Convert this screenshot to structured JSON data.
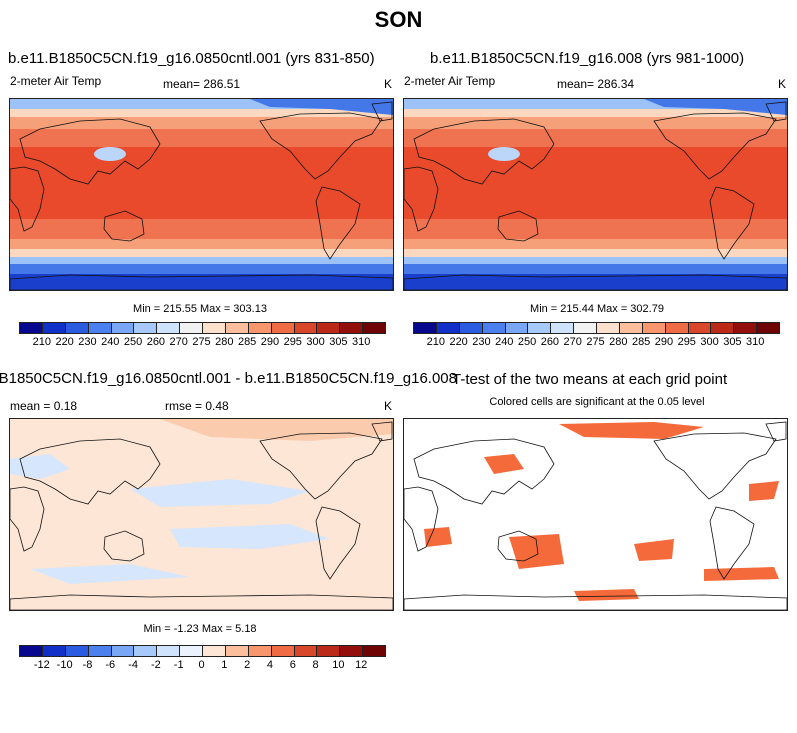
{
  "main_title": "SON",
  "panels": {
    "p1": {
      "title": "b.e11.B1850C5CN.f19_g16.0850cntl.001 (yrs 831-850)",
      "variable": "2-meter Air Temp",
      "mean_label": "mean= 286.51",
      "units": "K",
      "minmax": "Min = 215.55 Max = 303.13"
    },
    "p2": {
      "title": "b.e11.B1850C5CN.f19_g16.008 (yrs 981-1000)",
      "variable": "2-meter Air Temp",
      "mean_label": "mean= 286.34",
      "units": "K",
      "minmax": "Min = 215.44 Max = 302.79"
    },
    "p3": {
      "title": "B1850C5CN.f19_g16.0850cntl.001 - b.e11.B1850C5CN.f19_g16.008",
      "mean_label": "mean =   0.18",
      "rmse_label": "rmse =   0.48",
      "units": "K",
      "minmax": "Min = -1.23 Max =   5.18"
    },
    "p4": {
      "title": "T-test of the two means at each grid point",
      "subtitle": "Colored cells are significant at the 0.05 level",
      "sig_color": "#f56a3a"
    }
  },
  "chart_data": [
    {
      "type": "heatmap",
      "title": "b.e11.B1850C5CN.f19_g16.0850cntl.001 (yrs 831-850)",
      "variable": "2-meter Air Temp",
      "units": "K",
      "mean": 286.51,
      "min": 215.55,
      "max": 303.13,
      "colorbar_levels": [
        210,
        220,
        230,
        240,
        250,
        260,
        270,
        275,
        280,
        285,
        290,
        295,
        300,
        305,
        310
      ]
    },
    {
      "type": "heatmap",
      "title": "b.e11.B1850C5CN.f19_g16.008 (yrs 981-1000)",
      "variable": "2-meter Air Temp",
      "units": "K",
      "mean": 286.34,
      "min": 215.44,
      "max": 302.79,
      "colorbar_levels": [
        210,
        220,
        230,
        240,
        250,
        260,
        270,
        275,
        280,
        285,
        290,
        295,
        300,
        305,
        310
      ]
    },
    {
      "type": "heatmap",
      "title": "B1850C5CN.f19_g16.0850cntl.001 - b.e11.B1850C5CN.f19_g16.008",
      "units": "K",
      "mean": 0.18,
      "rmse": 0.48,
      "min": -1.23,
      "max": 5.18,
      "colorbar_levels": [
        -12,
        -10,
        -8,
        -6,
        -4,
        -2,
        -1,
        0,
        1,
        2,
        4,
        6,
        8,
        10,
        12
      ]
    },
    {
      "type": "heatmap",
      "title": "T-test of the two means at each grid point",
      "subtitle": "Colored cells are significant at the 0.05 level",
      "significance_level": 0.05
    }
  ],
  "colorbars": {
    "temp": {
      "labels": [
        "210",
        "220",
        "230",
        "240",
        "250",
        "260",
        "270",
        "275",
        "280",
        "285",
        "290",
        "295",
        "300",
        "305",
        "310"
      ],
      "colors": [
        "#08088f",
        "#1030c8",
        "#2b5be0",
        "#4c80ee",
        "#79a7f5",
        "#a7c9fa",
        "#cfe3fc",
        "#f2f2f2",
        "#fde1cf",
        "#fcbf9d",
        "#f8966d",
        "#f06a44",
        "#d9472b",
        "#bb2a18",
        "#930f0c",
        "#6e0404"
      ]
    },
    "diff": {
      "labels": [
        "-12",
        "-10",
        "-8",
        "-6",
        "-4",
        "-2",
        "-1",
        "0",
        "1",
        "2",
        "4",
        "6",
        "8",
        "10",
        "12"
      ],
      "colors": [
        "#08088f",
        "#1030c8",
        "#2b5be0",
        "#4c80ee",
        "#79a7f5",
        "#a7c9fa",
        "#cfe3fc",
        "#eaf2fe",
        "#fde6d6",
        "#fcbf9d",
        "#f8966d",
        "#f06a44",
        "#d9472b",
        "#bb2a18",
        "#930f0c",
        "#6e0404"
      ]
    }
  },
  "map_colors": {
    "polar_south": "#1a3fcc",
    "polar_south_mid": "#4477e8",
    "subpolar": "#9cc2f7",
    "cool": "#fcd8c0",
    "mild": "#f6a07a",
    "warm": "#ef7350",
    "hot": "#e94a2c",
    "tibet": "#bcd6fa",
    "diff_base": "#fde6d6",
    "diff_neg": "#d6e6fc",
    "diff_pos": "#fbcbae",
    "coast": "#111111"
  }
}
